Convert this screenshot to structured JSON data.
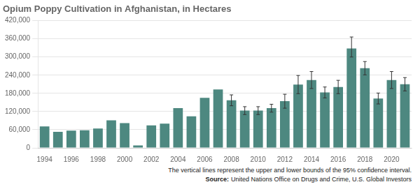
{
  "chart_data": {
    "type": "bar",
    "title": "Opium Poppy Cultivation in Afghanistan, in Hectares",
    "categories": [
      "1994",
      null,
      "1996",
      null,
      "1998",
      null,
      "2000",
      null,
      "2002",
      null,
      "2004",
      null,
      "2006",
      null,
      "2008",
      null,
      "2010",
      null,
      "2012",
      null,
      "2014",
      null,
      "2016",
      null,
      "2018",
      null,
      "2020",
      null
    ],
    "values": [
      71000,
      53000,
      57000,
      58000,
      64000,
      91000,
      82000,
      8000,
      74000,
      80000,
      131000,
      104000,
      165000,
      193000,
      157000,
      123000,
      123000,
      131000,
      154000,
      209000,
      224000,
      183000,
      201000,
      328000,
      263000,
      163000,
      224000,
      210000
    ],
    "yerr_lower": [
      0,
      0,
      0,
      0,
      0,
      0,
      0,
      0,
      0,
      0,
      0,
      0,
      0,
      0,
      18000,
      13000,
      13000,
      13000,
      23000,
      30000,
      28000,
      18000,
      22000,
      28000,
      22000,
      18000,
      28000,
      22000
    ],
    "yerr_upper": [
      0,
      0,
      0,
      0,
      0,
      0,
      0,
      0,
      0,
      0,
      0,
      0,
      0,
      0,
      18000,
      13000,
      13000,
      13000,
      23000,
      30000,
      28000,
      18000,
      22000,
      38000,
      22000,
      18000,
      28000,
      22000
    ],
    "color": "#4d8880",
    "ylim": [
      0,
      420000
    ],
    "yticks": [
      0,
      {
        "value": 60000,
        "label": "60,000"
      },
      {
        "value": 120000,
        "label": "120,000"
      },
      {
        "value": 180000,
        "label": "180,000"
      },
      {
        "value": 240000,
        "label": "240,000"
      },
      {
        "value": 300000,
        "label": "300,000"
      },
      {
        "value": 360000,
        "label": "360,000"
      },
      {
        "value": 420000,
        "label": "420,000"
      }
    ],
    "grid": true,
    "caption": "The vertical lines represent the upper and lower bounds of the 95% confidence interval.",
    "source_label": "Source:",
    "source": "United Nations Office on Drugs and Crime, U.S. Global Investors"
  }
}
